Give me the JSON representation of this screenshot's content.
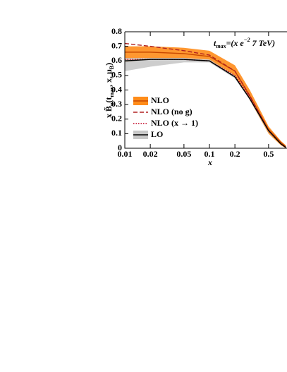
{
  "chart_data": {
    "type": "line",
    "x_scale": "log",
    "annotation": [
      "t",
      "max",
      "=(x e",
      "−2",
      " 7 TeV)"
    ],
    "x_label": "x",
    "y_label": [
      "x B̃",
      "u",
      "(t",
      "max",
      ", x, μ",
      "B",
      ")"
    ],
    "x": [
      0.01,
      0.02,
      0.05,
      0.1,
      0.2,
      0.3,
      0.5,
      0.7,
      0.8
    ],
    "xlim": [
      0.01,
      0.83
    ],
    "xticks": [
      0.01,
      0.02,
      0.05,
      0.1,
      0.2,
      0.5
    ],
    "ylim": [
      0,
      0.8
    ],
    "yticks": [
      0,
      0.1,
      0.2,
      0.3,
      0.4,
      0.5,
      0.6,
      0.7,
      0.8
    ],
    "series": [
      {
        "name": "NLO",
        "color": "#c84800",
        "dash": "solid",
        "band_color": "#ff8c1a",
        "values": [
          0.66,
          0.66,
          0.65,
          0.63,
          0.53,
          0.36,
          0.13,
          0.04,
          0.01
        ],
        "low": [
          0.59,
          0.61,
          0.62,
          0.6,
          0.5,
          0.33,
          0.1,
          0.02,
          0
        ],
        "high": [
          0.7,
          0.7,
          0.69,
          0.67,
          0.57,
          0.4,
          0.15,
          0.05,
          0.02
        ]
      },
      {
        "name": "NLO (no g)",
        "color": "#b02020",
        "dash": "6 3",
        "values": [
          0.72,
          0.7,
          0.67,
          0.64,
          0.53,
          0.36,
          0.12,
          0.03,
          0.005
        ]
      },
      {
        "name": "NLO (x → 1)",
        "color": "#c00020",
        "dash": "1.5 2",
        "values": [
          0.61,
          0.61,
          0.61,
          0.6,
          0.5,
          0.35,
          0.12,
          0.03,
          0.005
        ]
      },
      {
        "name": "LO",
        "color": "#000000",
        "dash": "solid",
        "band_color": "#c8c8c8",
        "values": [
          0.6,
          0.61,
          0.61,
          0.6,
          0.49,
          0.34,
          0.12,
          0.03,
          0.005
        ],
        "low": [
          0.53,
          0.56,
          0.59,
          0.59,
          0.48,
          0.33,
          0.11,
          0.03,
          0
        ],
        "high": [
          0.62,
          0.62,
          0.62,
          0.61,
          0.5,
          0.35,
          0.13,
          0.035,
          0.01
        ]
      }
    ]
  }
}
